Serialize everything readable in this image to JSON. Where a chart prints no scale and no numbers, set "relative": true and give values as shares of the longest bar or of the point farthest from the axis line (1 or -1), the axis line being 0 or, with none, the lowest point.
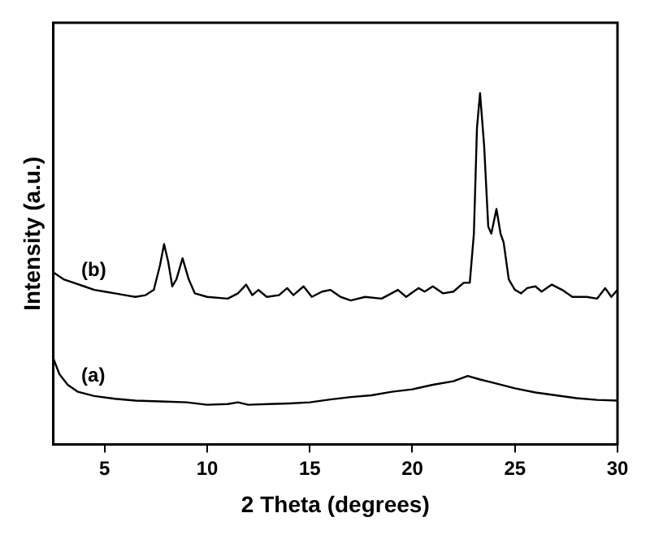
{
  "chart_data": {
    "type": "line",
    "xlabel": "2 Theta (degrees)",
    "ylabel": "Intensity (a.u.)",
    "relative": true,
    "xlim": [
      2.5,
      30
    ],
    "xticks": [
      5,
      10,
      15,
      20,
      25,
      30
    ],
    "grid": false,
    "legend": false,
    "tick_labels": "x",
    "marker": "none",
    "line_style": "solid",
    "series": [
      {
        "name": "(b)",
        "color": "#000000",
        "x": [
          2.5,
          3,
          3.5,
          4,
          4.5,
          5,
          5.5,
          6,
          6.5,
          7,
          7.4,
          7.7,
          7.9,
          8.1,
          8.3,
          8.5,
          8.8,
          9.1,
          9.4,
          10,
          11,
          11.5,
          11.9,
          12.2,
          12.5,
          12.9,
          13.5,
          13.9,
          14.2,
          14.7,
          15.1,
          15.6,
          16,
          16.5,
          17,
          17.7,
          18.5,
          19.3,
          19.7,
          20.3,
          20.6,
          21,
          21.5,
          22,
          22.5,
          22.8,
          23,
          23.15,
          23.3,
          23.5,
          23.7,
          23.85,
          24.1,
          24.3,
          24.45,
          24.7,
          25,
          25.3,
          25.6,
          26,
          26.3,
          26.8,
          27.3,
          27.8,
          28.5,
          29,
          29.4,
          29.7,
          30
        ],
        "values": [
          0.49,
          0.47,
          0.46,
          0.45,
          0.44,
          0.435,
          0.43,
          0.425,
          0.42,
          0.425,
          0.44,
          0.51,
          0.57,
          0.52,
          0.45,
          0.47,
          0.53,
          0.47,
          0.43,
          0.42,
          0.415,
          0.43,
          0.455,
          0.425,
          0.44,
          0.42,
          0.425,
          0.445,
          0.425,
          0.45,
          0.42,
          0.435,
          0.44,
          0.42,
          0.41,
          0.42,
          0.415,
          0.44,
          0.42,
          0.445,
          0.435,
          0.45,
          0.43,
          0.435,
          0.46,
          0.46,
          0.6,
          0.9,
          1,
          0.85,
          0.62,
          0.6,
          0.67,
          0.6,
          0.575,
          0.47,
          0.44,
          0.43,
          0.445,
          0.45,
          0.435,
          0.455,
          0.44,
          0.42,
          0.42,
          0.415,
          0.445,
          0.42,
          0.44
        ]
      },
      {
        "name": "(a)",
        "color": "#000000",
        "x": [
          2.5,
          2.8,
          3.2,
          3.7,
          4.5,
          5.5,
          6.5,
          8,
          9,
          10,
          11,
          11.5,
          12,
          13,
          14,
          15,
          16,
          17,
          18,
          19,
          20,
          21,
          22,
          22.7,
          23.3,
          24,
          25,
          26,
          27,
          28,
          29,
          30
        ],
        "values": [
          0.245,
          0.2,
          0.17,
          0.15,
          0.138,
          0.13,
          0.125,
          0.122,
          0.12,
          0.113,
          0.115,
          0.12,
          0.113,
          0.115,
          0.117,
          0.12,
          0.128,
          0.135,
          0.14,
          0.15,
          0.157,
          0.17,
          0.18,
          0.195,
          0.185,
          0.175,
          0.16,
          0.148,
          0.14,
          0.132,
          0.127,
          0.125
        ]
      }
    ]
  }
}
